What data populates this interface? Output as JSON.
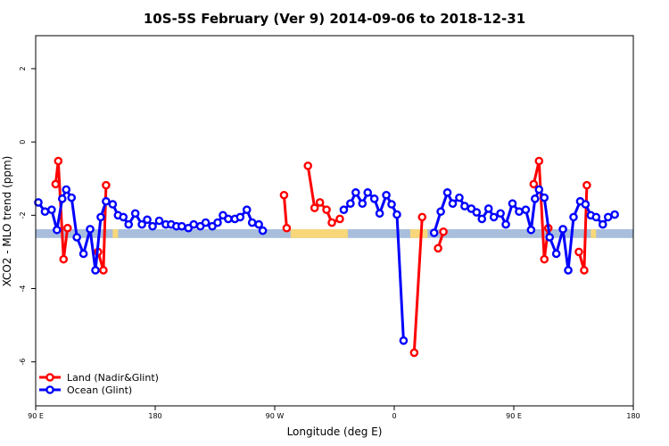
{
  "chart_data": {
    "type": "line",
    "title": "10S-5S February (Ver 9)   2014-09-06 to 2018-12-31",
    "xlabel": "Longitude (deg E)",
    "ylabel": "XCO2 - MLO trend (ppm)",
    "xlim": [
      90,
      540
    ],
    "ylim": [
      -7.2,
      2.9
    ],
    "x_ticks": [
      {
        "value": 90,
        "label": "90 E"
      },
      {
        "value": 180,
        "label": "180"
      },
      {
        "value": 270,
        "label": "90 W"
      },
      {
        "value": 360,
        "label": "0"
      },
      {
        "value": 450,
        "label": "90 E"
      },
      {
        "value": 540,
        "label": "180"
      }
    ],
    "y_ticks": [
      {
        "value": 2,
        "label": "2"
      },
      {
        "value": 0,
        "label": "0"
      },
      {
        "value": -2,
        "label": "-2"
      },
      {
        "value": -4,
        "label": "-4"
      },
      {
        "value": -6,
        "label": "-6"
      }
    ],
    "land_ocean_bar": {
      "y_range": [
        -2.62,
        -2.38
      ],
      "ocean_color": "#a8bedc",
      "land_color": "#f7d77a",
      "land_segments": [
        [
          148,
          152
        ],
        [
          282,
          325
        ],
        [
          372,
          385
        ],
        [
          508,
          512
        ]
      ]
    },
    "legend_position": "bottom-left",
    "series": [
      {
        "name": "Land (Nadir&Glint)",
        "color": "#ff0000",
        "segments": [
          [
            [
              105,
              -1.15
            ],
            [
              107,
              -0.52
            ],
            [
              111,
              -3.2
            ],
            [
              114,
              -2.35
            ]
          ],
          [
            [
              137,
              -3.0
            ],
            [
              141,
              -3.5
            ],
            [
              143,
              -1.18
            ]
          ],
          [
            [
              277,
              -1.45
            ],
            [
              279,
              -2.35
            ]
          ],
          [
            [
              295,
              -0.65
            ],
            [
              300,
              -1.8
            ],
            [
              304,
              -1.65
            ],
            [
              309,
              -1.85
            ],
            [
              313,
              -2.2
            ],
            [
              319,
              -2.1
            ]
          ],
          [
            [
              375,
              -5.75
            ],
            [
              381,
              -2.05
            ]
          ],
          [
            [
              393,
              -2.9
            ],
            [
              397,
              -2.45
            ]
          ],
          [
            [
              465,
              -1.15
            ],
            [
              469,
              -0.52
            ],
            [
              473,
              -3.2
            ],
            [
              476,
              -2.35
            ]
          ],
          [
            [
              499,
              -3.0
            ],
            [
              503,
              -3.5
            ],
            [
              505,
              -1.18
            ]
          ]
        ]
      },
      {
        "name": "Ocean (Glint)",
        "color": "#0000ff",
        "segments": [
          [
            [
              92,
              -1.65
            ],
            [
              97,
              -1.9
            ],
            [
              102,
              -1.85
            ],
            [
              106,
              -2.4
            ],
            [
              110,
              -1.55
            ],
            [
              113,
              -1.3
            ],
            [
              117,
              -1.52
            ],
            [
              121,
              -2.6
            ],
            [
              126,
              -3.05
            ],
            [
              131,
              -2.38
            ],
            [
              135,
              -3.5
            ],
            [
              139,
              -2.05
            ],
            [
              143,
              -1.62
            ],
            [
              148,
              -1.7
            ],
            [
              152,
              -2.0
            ],
            [
              156,
              -2.05
            ],
            [
              160,
              -2.25
            ],
            [
              165,
              -1.95
            ],
            [
              170,
              -2.25
            ],
            [
              174,
              -2.12
            ],
            [
              178,
              -2.3
            ],
            [
              183,
              -2.15
            ],
            [
              188,
              -2.25
            ],
            [
              192,
              -2.25
            ],
            [
              196,
              -2.3
            ],
            [
              200,
              -2.3
            ],
            [
              205,
              -2.35
            ],
            [
              209,
              -2.25
            ],
            [
              214,
              -2.3
            ],
            [
              218,
              -2.2
            ],
            [
              223,
              -2.3
            ],
            [
              227,
              -2.2
            ],
            [
              231,
              -2.0
            ],
            [
              235,
              -2.1
            ],
            [
              240,
              -2.1
            ],
            [
              244,
              -2.05
            ],
            [
              249,
              -1.85
            ],
            [
              253,
              -2.2
            ],
            [
              258,
              -2.25
            ],
            [
              261,
              -2.42
            ]
          ],
          [
            [
              322,
              -1.85
            ],
            [
              327,
              -1.68
            ],
            [
              331,
              -1.38
            ],
            [
              336,
              -1.68
            ],
            [
              340,
              -1.38
            ],
            [
              345,
              -1.55
            ],
            [
              349,
              -1.95
            ],
            [
              354,
              -1.45
            ],
            [
              358,
              -1.7
            ],
            [
              362,
              -1.98
            ],
            [
              367,
              -5.42
            ]
          ],
          [
            [
              390,
              -2.48
            ],
            [
              395,
              -1.9
            ],
            [
              400,
              -1.38
            ],
            [
              404,
              -1.68
            ],
            [
              409,
              -1.52
            ],
            [
              413,
              -1.75
            ],
            [
              418,
              -1.82
            ],
            [
              422,
              -1.92
            ],
            [
              426,
              -2.1
            ],
            [
              431,
              -1.82
            ],
            [
              435,
              -2.05
            ],
            [
              440,
              -1.95
            ],
            [
              444,
              -2.25
            ],
            [
              449,
              -1.68
            ],
            [
              454,
              -1.9
            ],
            [
              459,
              -1.85
            ],
            [
              463,
              -2.4
            ],
            [
              466,
              -1.55
            ],
            [
              469,
              -1.3
            ],
            [
              473,
              -1.52
            ],
            [
              477,
              -2.6
            ],
            [
              482,
              -3.05
            ],
            [
              487,
              -2.38
            ],
            [
              491,
              -3.5
            ],
            [
              495,
              -2.05
            ],
            [
              500,
              -1.62
            ],
            [
              504,
              -1.7
            ],
            [
              508,
              -2.0
            ],
            [
              512,
              -2.05
            ],
            [
              517,
              -2.25
            ],
            [
              521,
              -2.05
            ],
            [
              526,
              -1.98
            ]
          ]
        ]
      }
    ]
  }
}
